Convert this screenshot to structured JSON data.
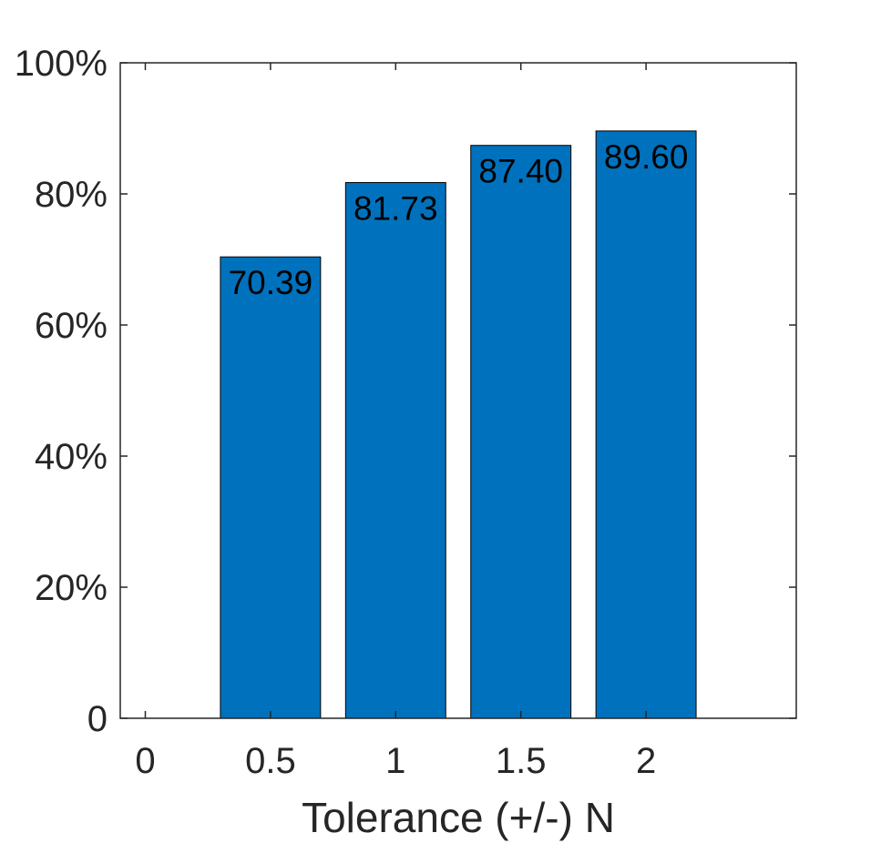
{
  "chart_data": {
    "type": "bar",
    "categories": [
      "0.5",
      "1",
      "1.5",
      "2"
    ],
    "category_values": [
      0.5,
      1,
      1.5,
      2
    ],
    "values": [
      70.39,
      81.73,
      87.4,
      89.6
    ],
    "data_labels": [
      "70.39",
      "81.73",
      "87.40",
      "89.60"
    ],
    "title": "",
    "xlabel": "Tolerance (+/-) N",
    "ylabel": "",
    "xlim": [
      -0.1,
      2.6
    ],
    "ylim": [
      0,
      100
    ],
    "xticks": [
      0,
      0.5,
      1,
      1.5,
      2
    ],
    "xtick_labels": [
      "0",
      "0.5",
      "1",
      "1.5",
      "2"
    ],
    "yticks": [
      0,
      20,
      40,
      60,
      80,
      100
    ],
    "ytick_labels": [
      "0",
      "20%",
      "40%",
      "60%",
      "80%",
      "100%"
    ],
    "grid": false,
    "bar_color": "#0072bd",
    "axis_color": "#262626"
  }
}
